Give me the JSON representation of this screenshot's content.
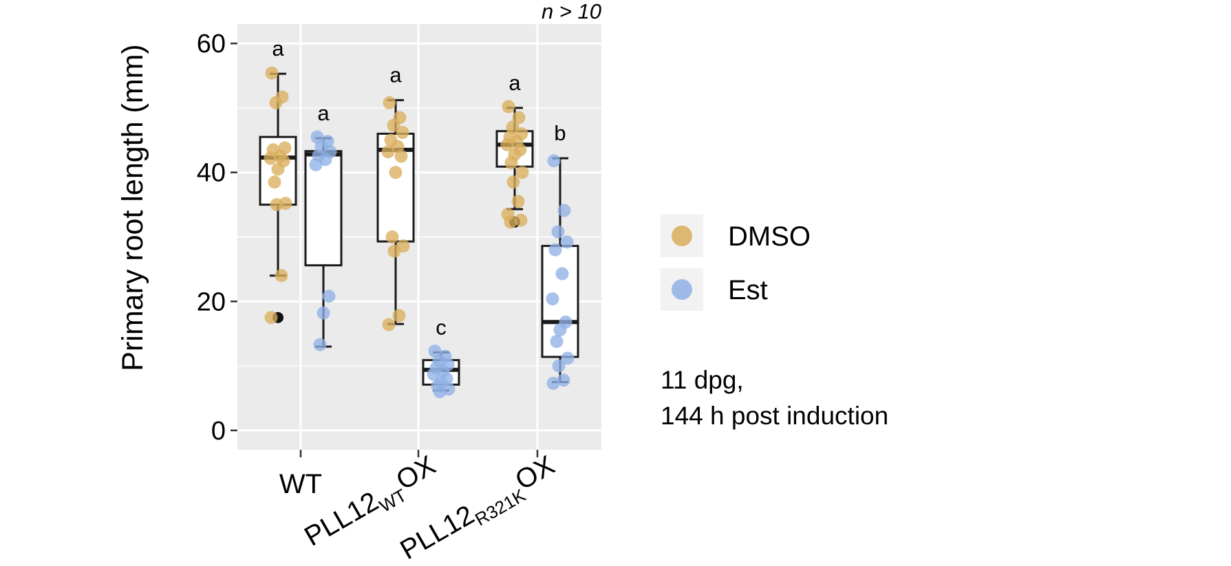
{
  "chart_data": {
    "type": "boxplot",
    "title": "",
    "xlabel": "",
    "ylabel": "Primary root length (mm)",
    "ylim": [
      -3,
      63
    ],
    "yticks": [
      0,
      20,
      40,
      60
    ],
    "ytick_labels": [
      "0",
      "20",
      "40",
      "60"
    ],
    "grid": true,
    "categories": [
      {
        "label": "WT",
        "base": "WT",
        "sub": "",
        "sup": ""
      },
      {
        "label": "PLL12WTOX",
        "base": "PLL12",
        "sub": "WT",
        "sup": "OX"
      },
      {
        "label": "PLL12R321KOX",
        "base": "PLL12",
        "sub": "R321K",
        "sup": "OX"
      }
    ],
    "legend": {
      "position": "right",
      "items": [
        {
          "label": "DMSO",
          "color": "#D9AE5C"
        },
        {
          "label": "Est",
          "color": "#8FB1E6"
        }
      ]
    },
    "annotation_top": "n > 10",
    "note_lines": [
      "11 dpg,",
      "144 h post induction"
    ],
    "series": [
      {
        "name": "DMSO",
        "color": "#D9AE5C",
        "boxes": [
          {
            "whisker_low": 24,
            "q1": 35,
            "median": 42.3,
            "q3": 45.5,
            "whisker_high": 55.3,
            "outliers": [
              17.5
            ],
            "letter": "a",
            "points": [
              55.4,
              51.7,
              50.8,
              43.8,
              43.5,
              42.5,
              42.2,
              41.8,
              40.5,
              38.5,
              35.2,
              35.0,
              24.0,
              17.5
            ]
          },
          {
            "whisker_low": 16.5,
            "q1": 29.3,
            "median": 43.5,
            "q3": 46,
            "whisker_high": 51.2,
            "outliers": [],
            "letter": "a",
            "points": [
              50.8,
              48.5,
              47.3,
              46.2,
              45.0,
              44.0,
              43.2,
              42.5,
              40.0,
              30.0,
              28.6,
              27.8,
              17.8,
              16.4
            ]
          },
          {
            "whisker_low": 34.3,
            "q1": 40.9,
            "median": 44.3,
            "q3": 46.4,
            "whisker_high": 50,
            "outliers": [
              32.3
            ],
            "letter": "a",
            "points": [
              50.2,
              48.5,
              47.0,
              46.0,
              45.5,
              44.8,
              44.3,
              43.5,
              42.8,
              41.5,
              40.0,
              38.5,
              35.5,
              33.5,
              32.6,
              32.3
            ]
          }
        ]
      },
      {
        "name": "Est",
        "color": "#8FB1E6",
        "boxes": [
          {
            "whisker_low": 13,
            "q1": 25.6,
            "median": 42.8,
            "q3": 43.3,
            "whisker_high": 45.3,
            "outliers": [],
            "letter": "a",
            "points": [
              45.5,
              44.8,
              44.0,
              43.2,
              42.6,
              42.0,
              41.2,
              20.8,
              18.2,
              13.3
            ]
          },
          {
            "whisker_low": 6.2,
            "q1": 7.1,
            "median": 9.4,
            "q3": 10.9,
            "whisker_high": 12.1,
            "outliers": [],
            "letter": "c",
            "points": [
              12.3,
              11.5,
              10.8,
              10.2,
              9.7,
              9.2,
              8.7,
              8.0,
              7.4,
              6.9,
              6.4,
              6.0
            ]
          },
          {
            "whisker_low": 7.5,
            "q1": 11.4,
            "median": 16.8,
            "q3": 28.6,
            "whisker_high": 42.2,
            "outliers": [],
            "letter": "b",
            "points": [
              41.8,
              34.1,
              30.8,
              29.2,
              28.0,
              24.3,
              20.4,
              16.8,
              15.6,
              13.8,
              11.2,
              10.0,
              7.8,
              7.3
            ]
          }
        ]
      }
    ]
  }
}
